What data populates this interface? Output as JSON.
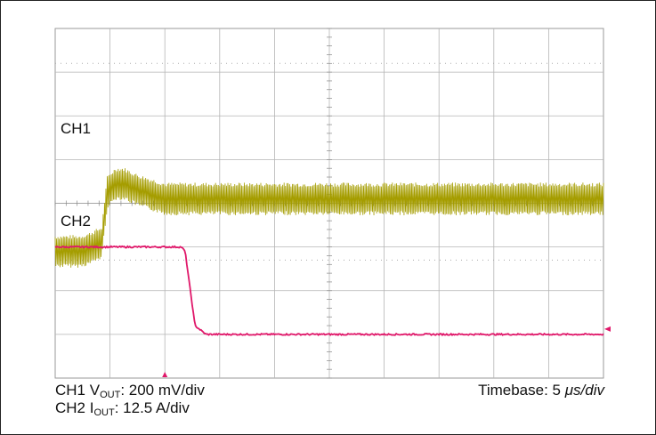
{
  "chart_data": [
    {
      "type": "line",
      "title": "",
      "grid": true,
      "grid_divisions": {
        "x": 10,
        "y": 8
      },
      "channels": [
        {
          "label": "CH1",
          "signal": "V",
          "signal_subscript": "OUT",
          "scale_text": ": 200 mV/div",
          "scale_mV_per_div": 200,
          "color": "#a59d00",
          "description": "noisy ripple waveform stepping up",
          "x_div": [
            0,
            0.45,
            0.6,
            0.85,
            0.9,
            0.95,
            1.1,
            1.25,
            1.5,
            2.0,
            3.0,
            10.0
          ],
          "y_mean_div": [
            -1.1,
            -1.1,
            -1.05,
            -0.9,
            -0.3,
            0.25,
            0.45,
            0.45,
            0.3,
            0.1,
            0.1,
            0.1
          ],
          "ripple_pk_pk_div": 0.75
        },
        {
          "label": "CH2",
          "signal": "I",
          "signal_subscript": "OUT",
          "scale_text": ": 12.5 A/div",
          "scale_A_per_div": 12.5,
          "color": "#e0186a",
          "description": "load current step down",
          "x_div": [
            0,
            2.3,
            2.37,
            2.55,
            2.75,
            10.0
          ],
          "y_div": [
            -1.0,
            -1.0,
            -1.1,
            -2.8,
            -3.0,
            -3.0
          ]
        }
      ],
      "timebase_label": "Timebase: 5 ",
      "timebase_unit": "μs/div",
      "timebase_us_per_div": 5,
      "trigger_position_div": 2.0
    }
  ]
}
